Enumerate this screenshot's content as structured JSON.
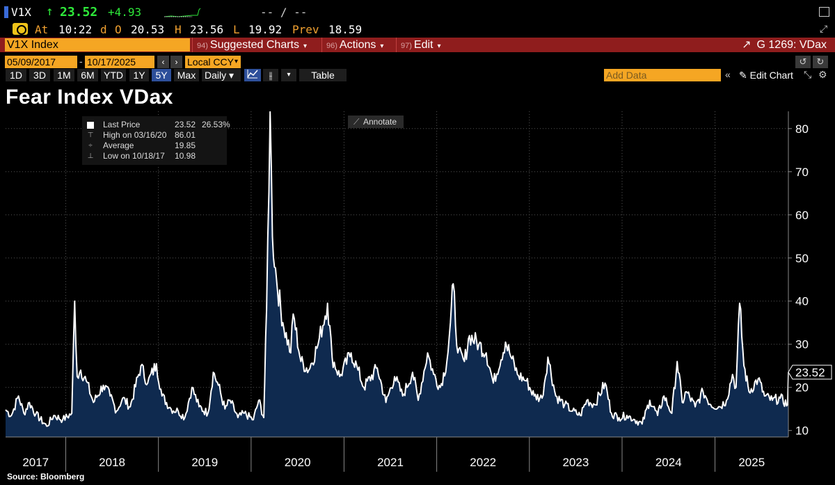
{
  "ticker": {
    "symbol": "V1X",
    "arrow": "↑",
    "last": "23.52",
    "change": "+4.93",
    "sparkline_icon": "sparkline-icon",
    "bid_ask": "-- / --"
  },
  "quote": {
    "at_label": "At",
    "time": "10:22",
    "d_label": "d",
    "open_label": "O",
    "open": "20.53",
    "high_label": "H",
    "high": "23.56",
    "low_label": "L",
    "low": "19.92",
    "prev_label": "Prev",
    "prev": "18.59"
  },
  "command_bar": {
    "security": "V1X Index",
    "menus": [
      {
        "num": "94)",
        "label": "Suggested Charts"
      },
      {
        "num": "96)",
        "label": "Actions"
      },
      {
        "num": "97)",
        "label": "Edit"
      }
    ],
    "graph_id": "G 1269: VDax"
  },
  "date_range": {
    "start": "05/09/2017",
    "separator": "-",
    "end": "10/17/2025",
    "currency": "Local CCY"
  },
  "periods": [
    "1D",
    "3D",
    "1M",
    "6M",
    "YTD",
    "1Y",
    "5Y",
    "Max"
  ],
  "active_period": "5Y",
  "frequency": "Daily",
  "table_label": "Table",
  "add_data_placeholder": "Add Data",
  "edit_chart_label": "Edit Chart",
  "annotate_label": "Annotate",
  "legend": {
    "last_price_label": "Last Price",
    "last_price": "23.52",
    "last_pct": "26.53%",
    "high_label": "High on 03/16/20",
    "high": "86.01",
    "average_label": "Average",
    "average": "19.85",
    "low_label": "Low on 10/18/17",
    "low": "10.98"
  },
  "source": "Source: Bloomberg",
  "colors": {
    "line": "#ffffff",
    "fill": "#0f2a4f",
    "background": "#000000",
    "accent_orange": "#f5a623",
    "command_bar": "#8f1d1d",
    "positive": "#2ee83a"
  },
  "chart_data": {
    "type": "area",
    "title": "Fear Index VDax",
    "xlabel": "",
    "ylabel": "",
    "x_tick_labels": [
      "2017",
      "2018",
      "2019",
      "2020",
      "2021",
      "2022",
      "2023",
      "2024",
      "2025"
    ],
    "y_ticks": [
      10,
      20,
      30,
      40,
      50,
      60,
      70,
      80
    ],
    "ylim": [
      8.5,
      84
    ],
    "xlim": [
      "2017-05-09",
      "2025-10-17"
    ],
    "grid": true,
    "y_axis_position": "right",
    "last_value_label": "23.52",
    "series": [
      {
        "name": "Last Price",
        "points": [
          [
            "2017-05-09",
            14.8
          ],
          [
            "2017-06-01",
            13.5
          ],
          [
            "2017-06-29",
            18.0
          ],
          [
            "2017-07-20",
            14.0
          ],
          [
            "2017-08-11",
            16.5
          ],
          [
            "2017-09-05",
            13.8
          ],
          [
            "2017-10-18",
            11.0
          ],
          [
            "2017-11-15",
            13.5
          ],
          [
            "2017-12-20",
            12.5
          ],
          [
            "2018-01-25",
            14.0
          ],
          [
            "2018-02-05",
            40.0
          ],
          [
            "2018-02-15",
            22.5
          ],
          [
            "2018-03-01",
            24.0
          ],
          [
            "2018-03-23",
            21.5
          ],
          [
            "2018-04-20",
            16.5
          ],
          [
            "2018-05-29",
            20.5
          ],
          [
            "2018-06-25",
            18.0
          ],
          [
            "2018-07-20",
            14.5
          ],
          [
            "2018-08-13",
            17.5
          ],
          [
            "2018-09-12",
            15.5
          ],
          [
            "2018-10-24",
            25.0
          ],
          [
            "2018-11-20",
            21.0
          ],
          [
            "2018-12-24",
            25.5
          ],
          [
            "2019-01-15",
            18.0
          ],
          [
            "2019-02-20",
            15.0
          ],
          [
            "2019-03-20",
            14.5
          ],
          [
            "2019-04-15",
            13.0
          ],
          [
            "2019-05-13",
            20.0
          ],
          [
            "2019-06-10",
            15.5
          ],
          [
            "2019-07-15",
            14.0
          ],
          [
            "2019-08-05",
            23.5
          ],
          [
            "2019-08-25",
            20.5
          ],
          [
            "2019-09-20",
            15.0
          ],
          [
            "2019-10-10",
            17.0
          ],
          [
            "2019-11-10",
            13.0
          ],
          [
            "2019-12-05",
            14.0
          ],
          [
            "2020-01-10",
            12.5
          ],
          [
            "2020-01-31",
            17.0
          ],
          [
            "2020-02-20",
            13.0
          ],
          [
            "2020-03-02",
            38.0
          ],
          [
            "2020-03-16",
            84.0
          ],
          [
            "2020-03-25",
            55.0
          ],
          [
            "2020-04-10",
            45.0
          ],
          [
            "2020-05-05",
            35.0
          ],
          [
            "2020-06-05",
            28.0
          ],
          [
            "2020-06-15",
            37.0
          ],
          [
            "2020-07-15",
            26.0
          ],
          [
            "2020-08-15",
            24.0
          ],
          [
            "2020-09-21",
            30.0
          ],
          [
            "2020-10-28",
            39.5
          ],
          [
            "2020-11-15",
            27.0
          ],
          [
            "2020-12-15",
            22.5
          ],
          [
            "2021-01-29",
            28.0
          ],
          [
            "2021-02-25",
            24.0
          ],
          [
            "2021-03-20",
            20.0
          ],
          [
            "2021-05-12",
            24.5
          ],
          [
            "2021-06-15",
            16.5
          ],
          [
            "2021-07-19",
            22.5
          ],
          [
            "2021-08-20",
            18.0
          ],
          [
            "2021-09-28",
            23.5
          ],
          [
            "2021-10-20",
            17.0
          ],
          [
            "2021-11-26",
            28.0
          ],
          [
            "2021-12-20",
            23.0
          ],
          [
            "2022-01-15",
            20.0
          ],
          [
            "2022-02-10",
            26.0
          ],
          [
            "2022-02-24",
            35.0
          ],
          [
            "2022-03-07",
            44.0
          ],
          [
            "2022-03-25",
            28.0
          ],
          [
            "2022-04-20",
            26.0
          ],
          [
            "2022-05-10",
            32.0
          ],
          [
            "2022-06-16",
            30.0
          ],
          [
            "2022-07-15",
            28.0
          ],
          [
            "2022-08-12",
            21.0
          ],
          [
            "2022-09-29",
            30.5
          ],
          [
            "2022-10-15",
            28.0
          ],
          [
            "2022-11-15",
            23.0
          ],
          [
            "2022-12-20",
            21.5
          ],
          [
            "2023-01-20",
            18.0
          ],
          [
            "2023-02-20",
            17.5
          ],
          [
            "2023-03-15",
            27.0
          ],
          [
            "2023-04-15",
            18.0
          ],
          [
            "2023-05-20",
            16.0
          ],
          [
            "2023-06-20",
            14.5
          ],
          [
            "2023-07-20",
            13.5
          ],
          [
            "2023-08-15",
            17.0
          ],
          [
            "2023-09-15",
            16.0
          ],
          [
            "2023-10-26",
            21.0
          ],
          [
            "2023-11-20",
            14.0
          ],
          [
            "2023-12-20",
            13.0
          ],
          [
            "2024-01-20",
            13.5
          ],
          [
            "2024-02-20",
            12.5
          ],
          [
            "2024-03-20",
            11.5
          ],
          [
            "2024-04-19",
            17.0
          ],
          [
            "2024-05-20",
            13.5
          ],
          [
            "2024-06-14",
            18.0
          ],
          [
            "2024-07-15",
            14.0
          ],
          [
            "2024-08-05",
            26.0
          ],
          [
            "2024-08-25",
            16.5
          ],
          [
            "2024-09-10",
            19.0
          ],
          [
            "2024-10-15",
            15.5
          ],
          [
            "2024-11-15",
            19.0
          ],
          [
            "2024-12-15",
            16.0
          ],
          [
            "2025-01-20",
            15.5
          ],
          [
            "2025-02-15",
            17.0
          ],
          [
            "2025-03-11",
            23.0
          ],
          [
            "2025-03-25",
            20.0
          ],
          [
            "2025-04-08",
            39.5
          ],
          [
            "2025-04-25",
            25.0
          ],
          [
            "2025-05-15",
            19.0
          ],
          [
            "2025-06-20",
            22.0
          ],
          [
            "2025-07-15",
            18.0
          ],
          [
            "2025-08-15",
            17.0
          ],
          [
            "2025-09-15",
            17.5
          ],
          [
            "2025-10-14",
            16.0
          ],
          [
            "2025-10-17",
            23.52
          ]
        ]
      }
    ]
  }
}
